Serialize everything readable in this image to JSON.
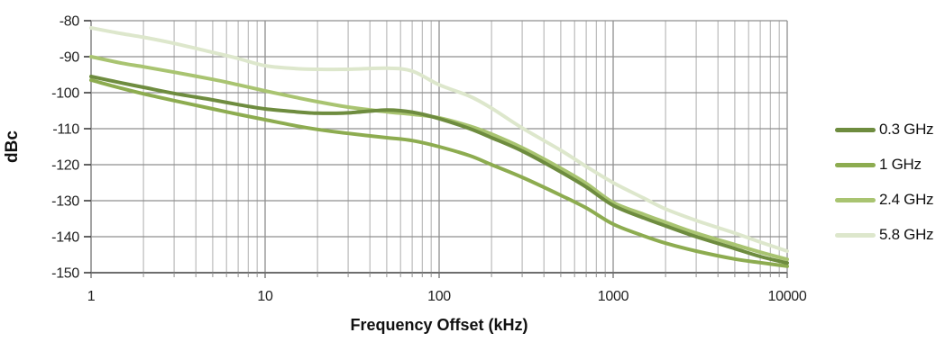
{
  "chart_data": {
    "type": "line",
    "title": "",
    "xlabel": "Frequency Offset (kHz)",
    "ylabel": "dBc",
    "x_scale": "log",
    "xlim": [
      1,
      10000
    ],
    "ylim": [
      -150,
      -80
    ],
    "grid": "major-horizontal, major+minor-vertical",
    "legend_position": "right",
    "x_ticks": [
      1,
      10,
      100,
      1000,
      10000
    ],
    "x_tick_labels": [
      "1",
      "10",
      "100",
      "1000",
      "10000"
    ],
    "y_ticks": [
      -80,
      -90,
      -100,
      -110,
      -120,
      -130,
      -140,
      -150
    ],
    "y_tick_labels": [
      "-80",
      "-90",
      "-100",
      "-110",
      "-120",
      "-130",
      "-140",
      "-150"
    ],
    "x": [
      1,
      1.5,
      2,
      3,
      5,
      7,
      10,
      15,
      20,
      30,
      50,
      70,
      100,
      150,
      200,
      300,
      500,
      700,
      1000,
      1500,
      2000,
      3000,
      5000,
      7000,
      10000
    ],
    "series": [
      {
        "name": "0.3 GHz",
        "color": "#6E8C3F",
        "values": [
          -95.5,
          -97.3,
          -98.5,
          -100.2,
          -102.0,
          -103.3,
          -104.5,
          -105.3,
          -105.7,
          -105.6,
          -104.8,
          -105.4,
          -107.2,
          -110.0,
          -112.5,
          -116.2,
          -122.0,
          -126.2,
          -131.3,
          -134.8,
          -137.0,
          -140.0,
          -143.3,
          -145.5,
          -147.3
        ]
      },
      {
        "name": "1 GHz",
        "color": "#8DAC50",
        "values": [
          -96.5,
          -98.8,
          -100.3,
          -102.2,
          -104.5,
          -106.0,
          -107.5,
          -109.2,
          -110.2,
          -111.3,
          -112.5,
          -113.3,
          -115.0,
          -117.5,
          -120.0,
          -123.5,
          -128.5,
          -132.0,
          -136.5,
          -139.8,
          -141.8,
          -144.0,
          -146.2,
          -147.2,
          -148.2
        ]
      },
      {
        "name": "2.4 GHz",
        "color": "#A9C471",
        "values": [
          -90.0,
          -91.8,
          -92.8,
          -94.3,
          -96.3,
          -97.8,
          -99.5,
          -101.3,
          -102.5,
          -104.0,
          -105.3,
          -106.0,
          -107.0,
          -109.3,
          -111.5,
          -115.3,
          -121.0,
          -125.2,
          -130.5,
          -133.8,
          -136.0,
          -139.0,
          -142.2,
          -144.3,
          -146.3
        ]
      },
      {
        "name": "5.8 GHz",
        "color": "#DDE7CC",
        "values": [
          -82.0,
          -83.6,
          -84.6,
          -86.3,
          -88.8,
          -90.5,
          -92.5,
          -93.3,
          -93.5,
          -93.5,
          -93.2,
          -94.0,
          -97.8,
          -101.0,
          -104.3,
          -109.8,
          -116.0,
          -120.5,
          -125.0,
          -129.3,
          -132.3,
          -135.5,
          -139.0,
          -141.5,
          -144.0
        ]
      }
    ]
  },
  "colors": {
    "grid_minor": "#ADADAD",
    "grid_major": "#8F8F8F",
    "axis_bottom": "#6E6E6E",
    "axis_left": "#8F8F8F",
    "tick_mark": "#3C3C3C",
    "text": "#1F1F1F",
    "background": "#FFFFFF"
  }
}
